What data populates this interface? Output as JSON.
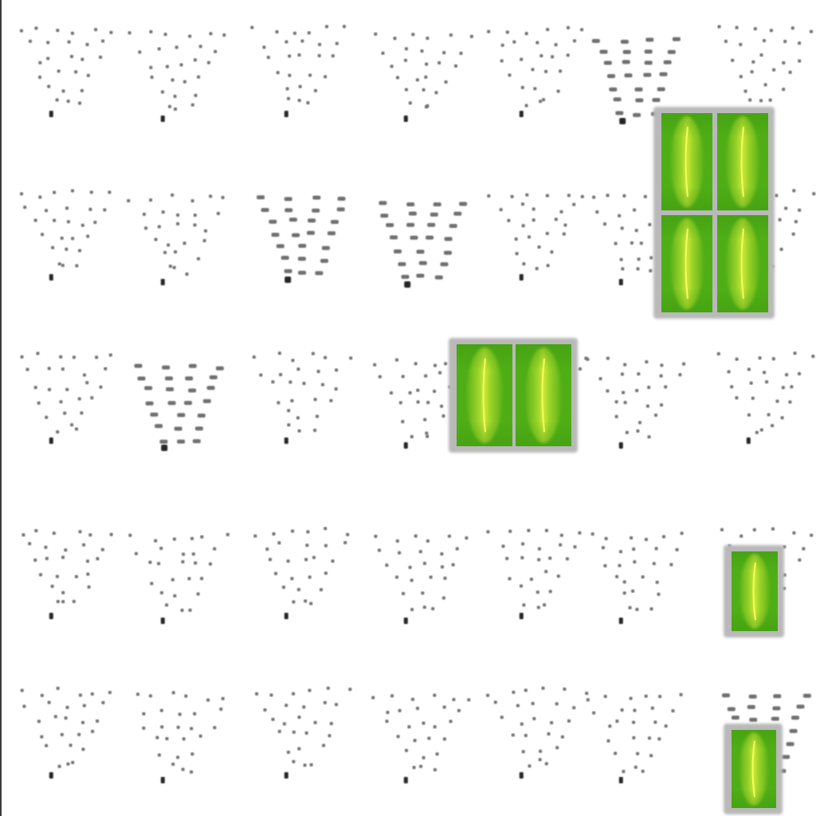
{
  "scene": {
    "title": "",
    "colors": {
      "background": "#ffffff",
      "border": "#3a3a3a",
      "seed_dot": "#6f6f6f",
      "seed_dot_dark": "#262626",
      "soil_shadow": "#b9b9b9",
      "crop_green": "#4fae16",
      "crop_highlight": "#d9ef3a",
      "crop_stem": "#f6ff5a"
    }
  },
  "field": {
    "rows": 5,
    "columns": 7,
    "plot_types": {
      "sparse": "seed-dot-cluster",
      "dense": "dense-seed-cluster"
    },
    "grid": [
      [
        "sparse",
        "sparse",
        "sparse",
        "sparse",
        "sparse",
        "dense",
        "sparse"
      ],
      [
        "sparse",
        "sparse",
        "dense",
        "dense",
        "sparse",
        "sparse",
        "sparse"
      ],
      [
        "sparse",
        "dense",
        "sparse",
        "sparse",
        "sparse",
        "sparse",
        "sparse"
      ],
      [
        "sparse",
        "sparse",
        "sparse",
        "sparse",
        "sparse",
        "sparse",
        "sparse"
      ],
      [
        "sparse",
        "sparse",
        "sparse",
        "sparse",
        "sparse",
        "sparse",
        "dense"
      ]
    ]
  },
  "crops": [
    {
      "id": "crop-block-top-right",
      "name": "grown-crop-2x2",
      "tiles_wide": 2,
      "tiles_high": 2
    },
    {
      "id": "crop-block-middle",
      "name": "grown-crop-2x1",
      "tiles_wide": 2,
      "tiles_high": 1
    },
    {
      "id": "crop-block-lower-right",
      "name": "grown-crop-1x1",
      "tiles_wide": 1,
      "tiles_high": 1
    },
    {
      "id": "crop-block-bottom-right",
      "name": "grown-crop-1x1",
      "tiles_wide": 1,
      "tiles_high": 1
    }
  ]
}
